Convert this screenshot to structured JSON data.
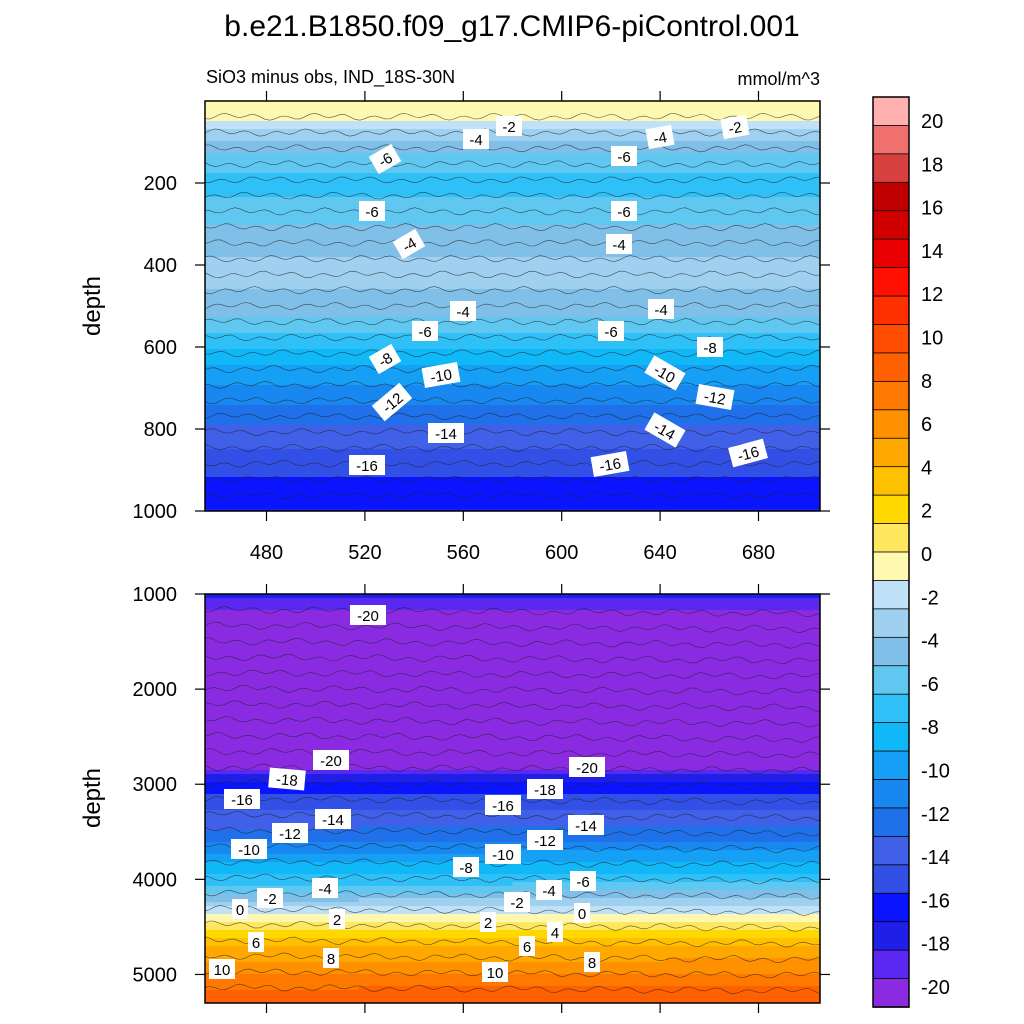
{
  "title": "b.e21.B1850.f09_g17.CMIP6-piControl.001",
  "subtitle_left": "SiO3 minus obs, IND_18S-30N",
  "subtitle_right": "mmol/m^3",
  "colors": {
    "levels": [
      "#8a2be2",
      "#5a28f0",
      "#1f1fe8",
      "#0a14ff",
      "#3250e6",
      "#4060e8",
      "#2070ea",
      "#1888f0",
      "#15a0f5",
      "#10b8f8",
      "#30c0f8",
      "#60c8f0",
      "#80c0e8",
      "#a0d0f0",
      "#c0e2f8",
      "#fff8b0",
      "#ffe860",
      "#ffd800",
      "#ffc000",
      "#ffa800",
      "#ff9000",
      "#ff7800",
      "#ff6000",
      "#ff4c00",
      "#ff3000",
      "#ff1000",
      "#e80000",
      "#d00000",
      "#c00000",
      "#d84040",
      "#f07070",
      "#ffb0b0"
    ]
  },
  "chart_data": [
    {
      "type": "heatmap",
      "panel": "upper",
      "ylabel": "depth",
      "x_ticks": [
        480,
        520,
        560,
        600,
        640,
        680
      ],
      "y_ticks": [
        200,
        400,
        600,
        800,
        1000
      ],
      "xlim": [
        455,
        705
      ],
      "ylim": [
        1000,
        0
      ],
      "depth_bands": [
        {
          "depth": 25,
          "value": 0.5
        },
        {
          "depth": 60,
          "value": -2
        },
        {
          "depth": 120,
          "value": -5
        },
        {
          "depth": 200,
          "value": -7
        },
        {
          "depth": 300,
          "value": -5
        },
        {
          "depth": 400,
          "value": -3
        },
        {
          "depth": 500,
          "value": -4
        },
        {
          "depth": 600,
          "value": -8
        },
        {
          "depth": 700,
          "value": -11
        },
        {
          "depth": 800,
          "value": -14
        },
        {
          "depth": 900,
          "value": -16
        },
        {
          "depth": 1000,
          "value": -18
        }
      ],
      "contour_labels": [
        "-2",
        "-4",
        "-6",
        "-8",
        "-10",
        "-12",
        "-14",
        "-16"
      ]
    },
    {
      "type": "heatmap",
      "panel": "lower",
      "ylabel": "depth",
      "y_ticks": [
        1000,
        2000,
        3000,
        4000,
        5000
      ],
      "xlim": [
        455,
        705
      ],
      "ylim": [
        5300,
        1000
      ],
      "depth_bands": [
        {
          "depth": 1000,
          "value": -19
        },
        {
          "depth": 1200,
          "value": -21
        },
        {
          "depth": 2800,
          "value": -21
        },
        {
          "depth": 3000,
          "value": -17
        },
        {
          "depth": 3500,
          "value": -13
        },
        {
          "depth": 4000,
          "value": -7
        },
        {
          "depth": 4400,
          "value": 0
        },
        {
          "depth": 4700,
          "value": 5
        },
        {
          "depth": 5100,
          "value": 9
        },
        {
          "depth": 5300,
          "value": 11
        }
      ],
      "contour_labels": [
        "-20",
        "-18",
        "-16",
        "-14",
        "-12",
        "-10",
        "-8",
        "-6",
        "-4",
        "-2",
        "0",
        "2",
        "4",
        "6",
        "8",
        "10"
      ]
    }
  ],
  "colorbar": {
    "labels": [
      "20",
      "18",
      "16",
      "14",
      "12",
      "10",
      "8",
      "6",
      "4",
      "2",
      "0",
      "-2",
      "-4",
      "-6",
      "-8",
      "-10",
      "-12",
      "-14",
      "-16",
      "-18",
      "-20"
    ]
  }
}
